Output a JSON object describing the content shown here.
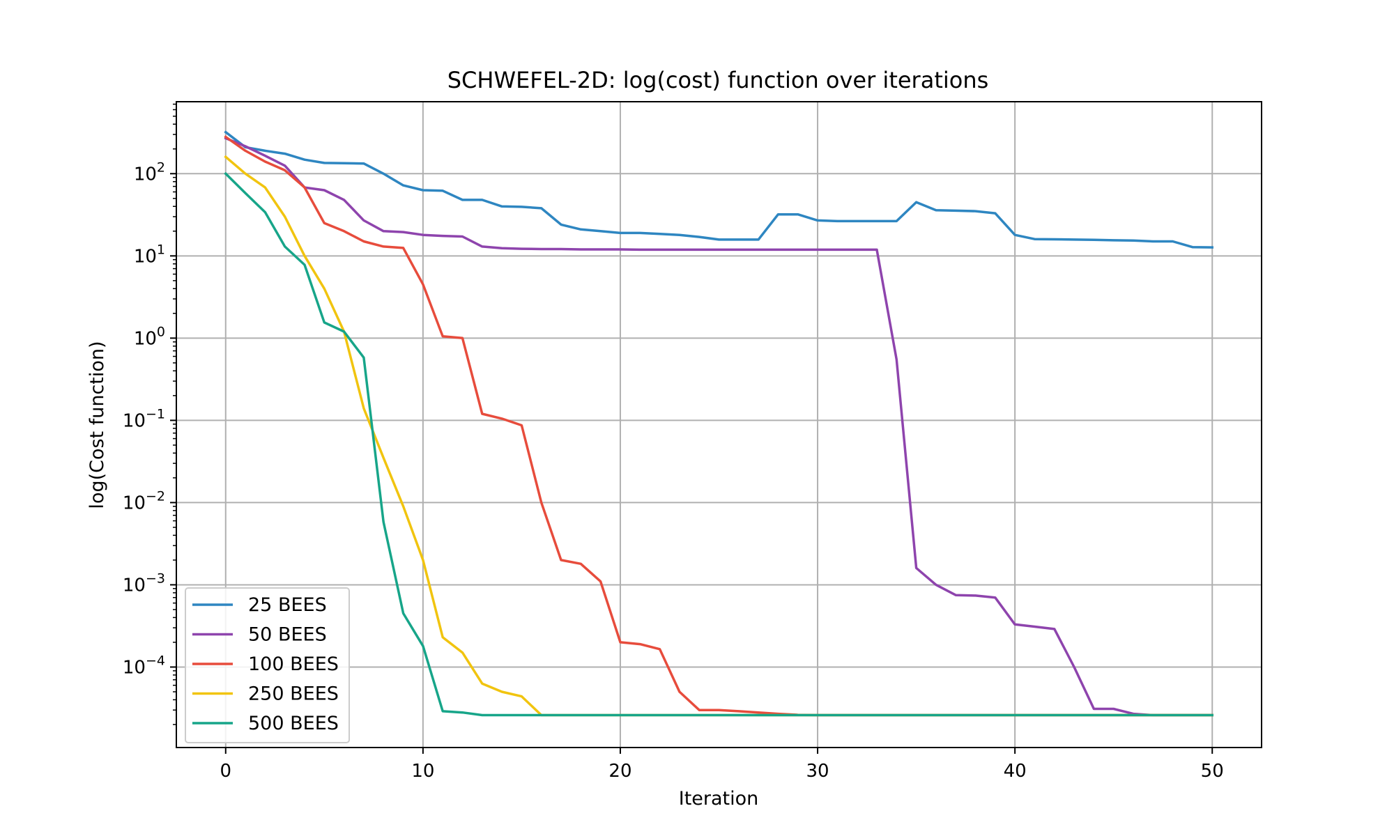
{
  "chart_data": {
    "type": "line",
    "title": "SCHWEFEL-2D: log(cost) function over iterations",
    "xlabel": "Iteration",
    "ylabel": "log(Cost function)",
    "yscale": "log",
    "xlim": [
      -2.5,
      52.5
    ],
    "ylim": [
      1.05e-05,
      750
    ],
    "xticks": [
      0,
      10,
      20,
      30,
      40,
      50
    ],
    "yticks": [
      {
        "value": 100,
        "base": "10",
        "exp": "2"
      },
      {
        "value": 10,
        "base": "10",
        "exp": "1"
      },
      {
        "value": 1,
        "base": "10",
        "exp": "0"
      },
      {
        "value": 0.1,
        "base": "10",
        "exp": "−1"
      },
      {
        "value": 0.01,
        "base": "10",
        "exp": "−2"
      },
      {
        "value": 0.001,
        "base": "10",
        "exp": "−3"
      },
      {
        "value": 0.0001,
        "base": "10",
        "exp": "−4"
      }
    ],
    "grid": true,
    "legend_position": "lower-left",
    "x": [
      0,
      1,
      2,
      3,
      4,
      5,
      6,
      7,
      8,
      9,
      10,
      11,
      12,
      13,
      14,
      15,
      16,
      17,
      18,
      19,
      20,
      21,
      22,
      23,
      24,
      25,
      26,
      27,
      28,
      29,
      30,
      31,
      32,
      33,
      34,
      35,
      36,
      37,
      38,
      39,
      40,
      41,
      42,
      43,
      44,
      45,
      46,
      47,
      48,
      49,
      50
    ],
    "series": [
      {
        "name": "25 BEES",
        "color": "#2e86c1",
        "values": [
          320,
          210,
          190,
          175,
          148,
          135,
          134,
          133,
          100,
          72,
          63,
          62,
          48,
          48,
          40,
          39.5,
          38,
          24,
          21,
          20,
          19,
          19,
          18.5,
          18,
          17,
          15.8,
          15.8,
          15.8,
          32,
          32,
          27,
          26.5,
          26.5,
          26.5,
          26.5,
          45,
          36,
          35.5,
          35,
          33,
          18,
          16,
          15.9,
          15.8,
          15.7,
          15.5,
          15.4,
          15,
          15,
          12.8,
          12.7
        ]
      },
      {
        "name": "50 BEES",
        "color": "#8e44ad",
        "values": [
          270,
          215,
          165,
          125,
          68,
          63,
          48,
          27,
          20,
          19.5,
          18,
          17.5,
          17.2,
          13,
          12.4,
          12.2,
          12.1,
          12.1,
          12,
          12,
          12,
          11.9,
          11.9,
          11.9,
          11.9,
          11.9,
          11.9,
          11.9,
          11.9,
          11.9,
          11.9,
          11.9,
          11.9,
          11.9,
          0.55,
          0.0016,
          0.001,
          0.00075,
          0.00074,
          0.0007,
          0.00033,
          0.00031,
          0.00029,
          0.0001,
          3.1e-05,
          3.1e-05,
          2.7e-05,
          2.6e-05,
          2.6e-05,
          2.6e-05,
          2.6e-05
        ]
      },
      {
        "name": "100 BEES",
        "color": "#e74c3c",
        "values": [
          280,
          190,
          140,
          110,
          68,
          25,
          20,
          15,
          13,
          12.5,
          4.5,
          1.05,
          1.0,
          0.12,
          0.105,
          0.087,
          0.01,
          0.002,
          0.0018,
          0.0011,
          0.0002,
          0.00019,
          0.000165,
          5e-05,
          3e-05,
          3e-05,
          2.9e-05,
          2.8e-05,
          2.7e-05,
          2.62e-05,
          2.6e-05,
          2.6e-05,
          2.6e-05,
          2.6e-05,
          2.6e-05,
          2.6e-05,
          2.6e-05,
          2.6e-05,
          2.6e-05,
          2.6e-05,
          2.6e-05,
          2.6e-05,
          2.6e-05,
          2.6e-05,
          2.6e-05,
          2.6e-05,
          2.6e-05,
          2.6e-05,
          2.6e-05,
          2.6e-05,
          2.6e-05
        ]
      },
      {
        "name": "250 BEES",
        "color": "#f1c40f",
        "values": [
          160,
          100,
          68,
          30,
          10,
          4,
          1.2,
          0.14,
          0.035,
          0.009,
          0.002,
          0.00023,
          0.00015,
          6.3e-05,
          5e-05,
          4.4e-05,
          2.6e-05,
          2.6e-05,
          2.6e-05,
          2.6e-05,
          2.6e-05,
          2.6e-05,
          2.6e-05,
          2.6e-05,
          2.6e-05,
          2.6e-05,
          2.6e-05,
          2.6e-05,
          2.6e-05,
          2.6e-05,
          2.6e-05,
          2.6e-05,
          2.6e-05,
          2.6e-05,
          2.6e-05,
          2.6e-05,
          2.6e-05,
          2.6e-05,
          2.6e-05,
          2.6e-05,
          2.6e-05,
          2.6e-05,
          2.6e-05,
          2.6e-05,
          2.6e-05,
          2.6e-05,
          2.6e-05,
          2.6e-05,
          2.6e-05,
          2.6e-05,
          2.6e-05
        ]
      },
      {
        "name": "500 BEES",
        "color": "#17a589",
        "values": [
          100,
          58,
          34,
          13,
          7.8,
          1.55,
          1.2,
          0.58,
          0.0058,
          0.00045,
          0.00018,
          2.9e-05,
          2.8e-05,
          2.6e-05,
          2.6e-05,
          2.6e-05,
          2.6e-05,
          2.6e-05,
          2.6e-05,
          2.6e-05,
          2.6e-05,
          2.6e-05,
          2.6e-05,
          2.6e-05,
          2.6e-05,
          2.6e-05,
          2.6e-05,
          2.6e-05,
          2.6e-05,
          2.6e-05,
          2.6e-05,
          2.6e-05,
          2.6e-05,
          2.6e-05,
          2.6e-05,
          2.6e-05,
          2.6e-05,
          2.6e-05,
          2.6e-05,
          2.6e-05,
          2.6e-05,
          2.6e-05,
          2.6e-05,
          2.6e-05,
          2.6e-05,
          2.6e-05,
          2.6e-05,
          2.6e-05,
          2.6e-05,
          2.6e-05,
          2.6e-05
        ]
      }
    ]
  }
}
